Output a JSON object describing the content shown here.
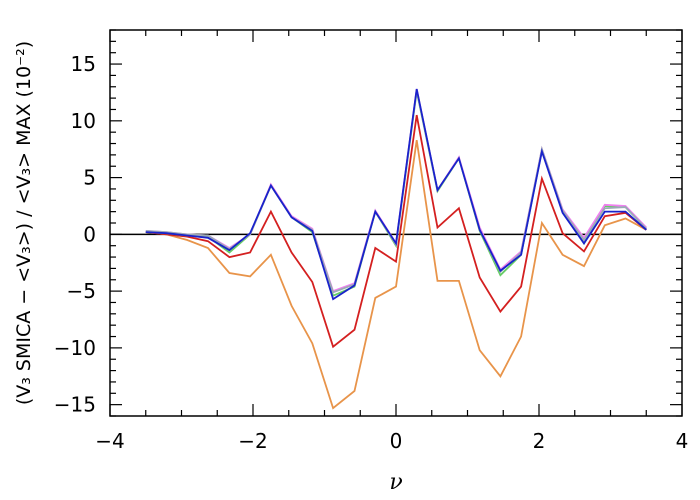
{
  "chart_data": {
    "type": "line",
    "xlabel": "ν",
    "ylabel": "(V₃ SMICA − <V₃>) / <V₃> MAX (10⁻²)",
    "xlim": [
      -4,
      4
    ],
    "ylim": [
      -16,
      18
    ],
    "x_ticks": [
      -4,
      -2,
      0,
      2,
      4
    ],
    "y_ticks": [
      -15,
      -10,
      -5,
      0,
      5,
      10,
      15
    ],
    "zero_line": true,
    "grid": false,
    "x": [
      -3.5,
      -3.21,
      -2.92,
      -2.63,
      -2.33,
      -2.04,
      -1.75,
      -1.46,
      -1.17,
      -0.88,
      -0.58,
      -0.29,
      0.0,
      0.29,
      0.58,
      0.88,
      1.17,
      1.46,
      1.75,
      2.04,
      2.33,
      2.63,
      2.92,
      3.21,
      3.5
    ],
    "series": [
      {
        "color": "#e8944a",
        "values": [
          0.2,
          0.0,
          -0.5,
          -1.2,
          -3.4,
          -3.7,
          -1.8,
          -6.3,
          -9.6,
          -15.3,
          -13.8,
          -5.6,
          -4.6,
          8.3,
          -4.1,
          -4.1,
          -10.2,
          -12.5,
          -9.0,
          1.0,
          -1.8,
          -2.8,
          0.8,
          1.4,
          0.4
        ]
      },
      {
        "color": "#d42020",
        "values": [
          0.2,
          0.0,
          -0.2,
          -0.6,
          -2.0,
          -1.6,
          2.0,
          -1.6,
          -4.2,
          -9.9,
          -8.4,
          -1.2,
          -2.4,
          10.5,
          0.6,
          2.3,
          -3.8,
          -6.8,
          -4.6,
          4.9,
          0.1,
          -1.5,
          1.6,
          1.9,
          0.4
        ]
      },
      {
        "color": "#66cc66",
        "values": [
          0.2,
          0.1,
          -0.1,
          -0.2,
          -1.6,
          0.0,
          4.3,
          1.5,
          0.2,
          -5.4,
          -4.6,
          2.0,
          -1.0,
          12.6,
          3.8,
          6.7,
          0.3,
          -3.6,
          -1.8,
          7.4,
          2.0,
          -0.8,
          2.5,
          2.4,
          0.5
        ]
      },
      {
        "color": "#f080f0",
        "values": [
          0.3,
          0.2,
          0.0,
          -0.1,
          -1.2,
          0.0,
          4.4,
          1.6,
          0.5,
          -5.0,
          -4.3,
          2.1,
          -0.8,
          12.8,
          3.9,
          6.8,
          0.6,
          -3.1,
          -1.5,
          7.5,
          2.2,
          -0.3,
          2.6,
          2.5,
          0.6
        ]
      },
      {
        "color": "#9aaab6",
        "values": [
          0.3,
          0.2,
          0.0,
          -0.1,
          -1.3,
          0.0,
          4.3,
          1.5,
          0.4,
          -5.1,
          -4.4,
          2.0,
          -0.9,
          12.7,
          3.9,
          6.7,
          0.4,
          -3.3,
          -1.6,
          7.5,
          2.1,
          -0.5,
          2.3,
          2.4,
          0.5
        ]
      },
      {
        "color": "#1a22cc",
        "values": [
          0.2,
          0.1,
          -0.1,
          -0.3,
          -1.4,
          0.1,
          4.3,
          1.5,
          0.3,
          -5.7,
          -4.5,
          2.0,
          -0.8,
          12.8,
          3.9,
          6.7,
          0.4,
          -3.2,
          -1.8,
          7.3,
          1.9,
          -0.8,
          2.0,
          2.0,
          0.4
        ]
      }
    ]
  }
}
